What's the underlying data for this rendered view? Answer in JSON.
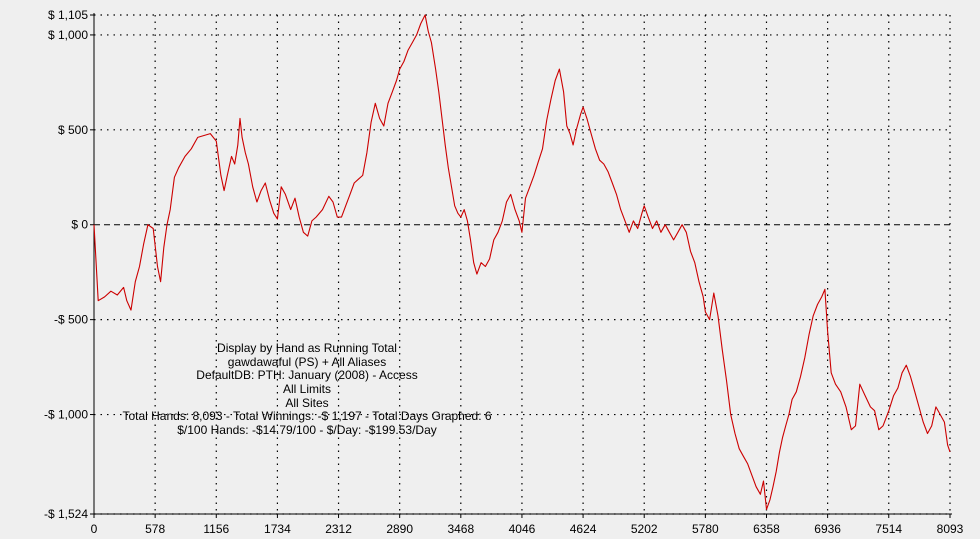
{
  "chart_data": {
    "type": "line",
    "title": "",
    "xlabel": "",
    "ylabel": "",
    "xlim": [
      0,
      8093
    ],
    "ylim": [
      -1524,
      1105
    ],
    "grid": true,
    "grid_style": "dotted",
    "zero_line_style": "dashed",
    "colors": {
      "line": "#cc0000",
      "background": "#efefef",
      "grid": "#000000",
      "axis": "#000000"
    },
    "x_ticks": [
      {
        "value": 0,
        "label": "0"
      },
      {
        "value": 578,
        "label": "578"
      },
      {
        "value": 1156,
        "label": "1156"
      },
      {
        "value": 1734,
        "label": "1734"
      },
      {
        "value": 2312,
        "label": "2312"
      },
      {
        "value": 2890,
        "label": "2890"
      },
      {
        "value": 3468,
        "label": "3468"
      },
      {
        "value": 4046,
        "label": "4046"
      },
      {
        "value": 4624,
        "label": "4624"
      },
      {
        "value": 5202,
        "label": "5202"
      },
      {
        "value": 5780,
        "label": "5780"
      },
      {
        "value": 6358,
        "label": "6358"
      },
      {
        "value": 6936,
        "label": "6936"
      },
      {
        "value": 7514,
        "label": "7514"
      },
      {
        "value": 8093,
        "label": "8093"
      }
    ],
    "y_ticks": [
      {
        "value": 1105,
        "label": "$ 1,105"
      },
      {
        "value": 1000,
        "label": "$ 1,000"
      },
      {
        "value": 500,
        "label": "$ 500"
      },
      {
        "value": 0,
        "label": "$ 0"
      },
      {
        "value": -500,
        "label": "-$ 500"
      },
      {
        "value": -1000,
        "label": "-$ 1,000"
      },
      {
        "value": -1524,
        "label": "-$ 1,524"
      }
    ],
    "annotations": [
      "Display by Hand as Running Total",
      "gawdawaful (PS) + All Aliases",
      "DefaultDB: PTH: January (2008) - Access",
      "All Limits",
      "All Sites",
      "Total Hands: 8,093 - Total Winnings: -$ 1,197 - Total Days Graphed: 6",
      "$/100 Hands: -$14.79/100 - $/Day: -$199.53/Day"
    ],
    "series": [
      {
        "values": [
          [
            0,
            0
          ],
          [
            40,
            -400
          ],
          [
            100,
            -380
          ],
          [
            160,
            -350
          ],
          [
            220,
            -370
          ],
          [
            280,
            -330
          ],
          [
            310,
            -400
          ],
          [
            350,
            -450
          ],
          [
            390,
            -300
          ],
          [
            430,
            -220
          ],
          [
            470,
            -100
          ],
          [
            510,
            0
          ],
          [
            560,
            -20
          ],
          [
            600,
            -220
          ],
          [
            630,
            -300
          ],
          [
            660,
            -120
          ],
          [
            690,
            0
          ],
          [
            720,
            80
          ],
          [
            760,
            250
          ],
          [
            800,
            300
          ],
          [
            860,
            360
          ],
          [
            920,
            400
          ],
          [
            980,
            460
          ],
          [
            1040,
            470
          ],
          [
            1100,
            480
          ],
          [
            1156,
            440
          ],
          [
            1200,
            260
          ],
          [
            1230,
            180
          ],
          [
            1260,
            260
          ],
          [
            1300,
            360
          ],
          [
            1330,
            320
          ],
          [
            1360,
            420
          ],
          [
            1380,
            560
          ],
          [
            1400,
            460
          ],
          [
            1430,
            380
          ],
          [
            1460,
            320
          ],
          [
            1500,
            200
          ],
          [
            1540,
            120
          ],
          [
            1580,
            180
          ],
          [
            1620,
            220
          ],
          [
            1660,
            130
          ],
          [
            1700,
            60
          ],
          [
            1734,
            30
          ],
          [
            1770,
            200
          ],
          [
            1810,
            160
          ],
          [
            1860,
            80
          ],
          [
            1900,
            140
          ],
          [
            1940,
            40
          ],
          [
            1980,
            -40
          ],
          [
            2020,
            -60
          ],
          [
            2060,
            20
          ],
          [
            2100,
            40
          ],
          [
            2160,
            80
          ],
          [
            2220,
            150
          ],
          [
            2260,
            120
          ],
          [
            2300,
            40
          ],
          [
            2340,
            40
          ],
          [
            2380,
            100
          ],
          [
            2420,
            160
          ],
          [
            2460,
            220
          ],
          [
            2500,
            240
          ],
          [
            2540,
            260
          ],
          [
            2580,
            380
          ],
          [
            2620,
            540
          ],
          [
            2660,
            640
          ],
          [
            2700,
            560
          ],
          [
            2740,
            520
          ],
          [
            2780,
            640
          ],
          [
            2820,
            700
          ],
          [
            2860,
            760
          ],
          [
            2890,
            820
          ],
          [
            2930,
            860
          ],
          [
            2970,
            920
          ],
          [
            3010,
            960
          ],
          [
            3050,
            1000
          ],
          [
            3090,
            1060
          ],
          [
            3130,
            1105
          ],
          [
            3160,
            1020
          ],
          [
            3190,
            960
          ],
          [
            3230,
            820
          ],
          [
            3260,
            700
          ],
          [
            3290,
            560
          ],
          [
            3320,
            420
          ],
          [
            3350,
            300
          ],
          [
            3380,
            200
          ],
          [
            3410,
            100
          ],
          [
            3440,
            60
          ],
          [
            3468,
            40
          ],
          [
            3500,
            80
          ],
          [
            3530,
            20
          ],
          [
            3560,
            -80
          ],
          [
            3590,
            -200
          ],
          [
            3620,
            -260
          ],
          [
            3660,
            -200
          ],
          [
            3700,
            -220
          ],
          [
            3740,
            -180
          ],
          [
            3780,
            -80
          ],
          [
            3820,
            -40
          ],
          [
            3860,
            20
          ],
          [
            3900,
            120
          ],
          [
            3940,
            160
          ],
          [
            3980,
            80
          ],
          [
            4020,
            20
          ],
          [
            4046,
            -40
          ],
          [
            4080,
            140
          ],
          [
            4120,
            200
          ],
          [
            4160,
            260
          ],
          [
            4200,
            330
          ],
          [
            4240,
            400
          ],
          [
            4280,
            550
          ],
          [
            4320,
            660
          ],
          [
            4360,
            760
          ],
          [
            4400,
            820
          ],
          [
            4440,
            700
          ],
          [
            4470,
            520
          ],
          [
            4500,
            480
          ],
          [
            4530,
            420
          ],
          [
            4560,
            500
          ],
          [
            4600,
            580
          ],
          [
            4624,
            620
          ],
          [
            4660,
            560
          ],
          [
            4700,
            480
          ],
          [
            4740,
            400
          ],
          [
            4780,
            340
          ],
          [
            4820,
            320
          ],
          [
            4860,
            280
          ],
          [
            4900,
            220
          ],
          [
            4940,
            160
          ],
          [
            4980,
            80
          ],
          [
            5020,
            20
          ],
          [
            5060,
            -40
          ],
          [
            5100,
            20
          ],
          [
            5140,
            -20
          ],
          [
            5180,
            60
          ],
          [
            5202,
            100
          ],
          [
            5240,
            40
          ],
          [
            5280,
            -20
          ],
          [
            5320,
            20
          ],
          [
            5360,
            -40
          ],
          [
            5400,
            0
          ],
          [
            5440,
            -40
          ],
          [
            5480,
            -80
          ],
          [
            5520,
            -40
          ],
          [
            5560,
            0
          ],
          [
            5600,
            -40
          ],
          [
            5640,
            -140
          ],
          [
            5680,
            -200
          ],
          [
            5720,
            -300
          ],
          [
            5760,
            -380
          ],
          [
            5780,
            -460
          ],
          [
            5820,
            -500
          ],
          [
            5860,
            -360
          ],
          [
            5900,
            -480
          ],
          [
            5940,
            -660
          ],
          [
            5980,
            -820
          ],
          [
            6020,
            -1000
          ],
          [
            6060,
            -1100
          ],
          [
            6100,
            -1180
          ],
          [
            6140,
            -1220
          ],
          [
            6180,
            -1260
          ],
          [
            6220,
            -1320
          ],
          [
            6260,
            -1380
          ],
          [
            6300,
            -1420
          ],
          [
            6330,
            -1350
          ],
          [
            6358,
            -1500
          ],
          [
            6390,
            -1450
          ],
          [
            6420,
            -1380
          ],
          [
            6450,
            -1300
          ],
          [
            6480,
            -1200
          ],
          [
            6510,
            -1120
          ],
          [
            6540,
            -1060
          ],
          [
            6570,
            -1000
          ],
          [
            6600,
            -920
          ],
          [
            6640,
            -880
          ],
          [
            6680,
            -800
          ],
          [
            6720,
            -700
          ],
          [
            6760,
            -580
          ],
          [
            6800,
            -480
          ],
          [
            6840,
            -420
          ],
          [
            6880,
            -380
          ],
          [
            6910,
            -340
          ],
          [
            6936,
            -560
          ],
          [
            6970,
            -780
          ],
          [
            7010,
            -840
          ],
          [
            7060,
            -880
          ],
          [
            7110,
            -960
          ],
          [
            7160,
            -1080
          ],
          [
            7200,
            -1060
          ],
          [
            7240,
            -840
          ],
          [
            7290,
            -900
          ],
          [
            7340,
            -960
          ],
          [
            7380,
            -980
          ],
          [
            7420,
            -1080
          ],
          [
            7460,
            -1060
          ],
          [
            7514,
            -980
          ],
          [
            7560,
            -900
          ],
          [
            7600,
            -860
          ],
          [
            7640,
            -780
          ],
          [
            7680,
            -740
          ],
          [
            7720,
            -800
          ],
          [
            7760,
            -880
          ],
          [
            7800,
            -960
          ],
          [
            7840,
            -1040
          ],
          [
            7880,
            -1100
          ],
          [
            7920,
            -1060
          ],
          [
            7960,
            -960
          ],
          [
            8000,
            -1000
          ],
          [
            8040,
            -1040
          ],
          [
            8070,
            -1160
          ],
          [
            8093,
            -1197
          ]
        ]
      }
    ]
  }
}
